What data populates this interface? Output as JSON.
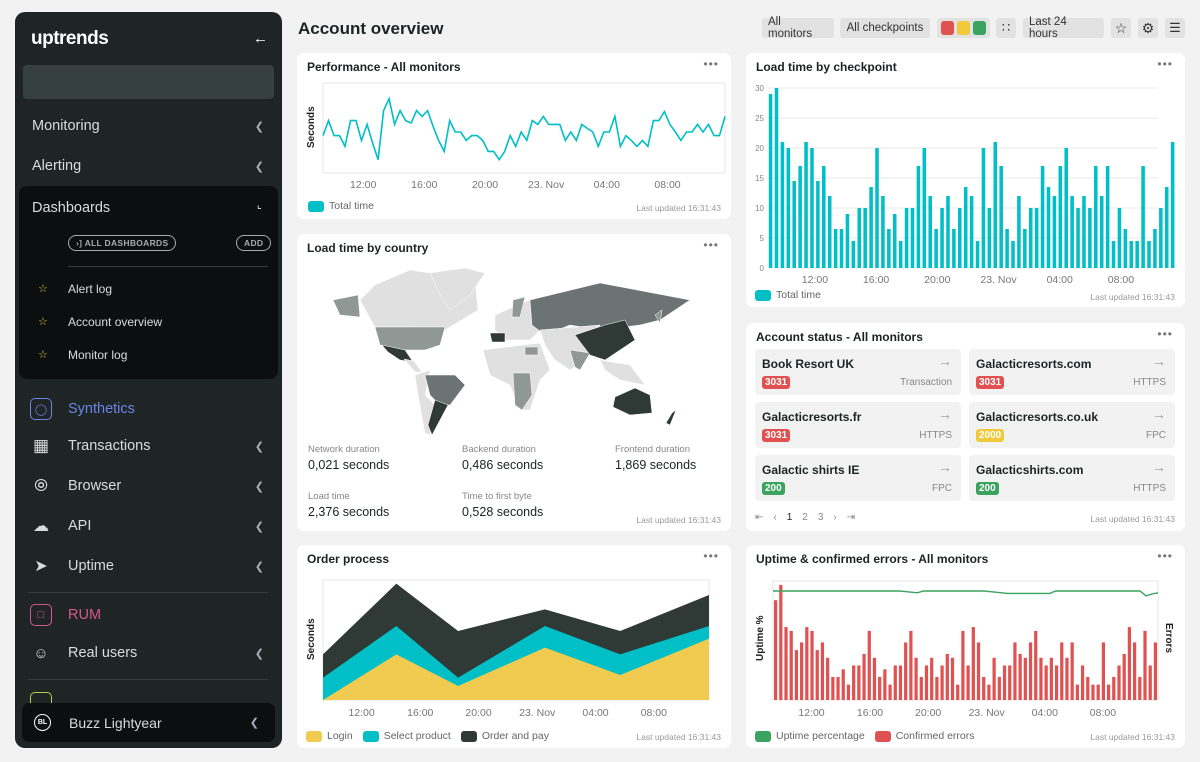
{
  "sidebar": {
    "logo": "uptrends",
    "search_placeholder": "",
    "top_items": [
      {
        "label": "Monitoring"
      },
      {
        "label": "Alerting"
      }
    ],
    "dashboards": {
      "label": "Dashboards",
      "all_label": "ALL DASHBOARDS",
      "add_label": "ADD",
      "items": [
        "Alert log",
        "Account overview",
        "Monitor log"
      ]
    },
    "synthetics": {
      "label": "Synthetics",
      "color": "#6b84e8"
    },
    "synthetic_items": [
      {
        "label": "Transactions",
        "icon": "film-icon"
      },
      {
        "label": "Browser",
        "icon": "compass-icon"
      },
      {
        "label": "API",
        "icon": "cloud-upload-icon"
      },
      {
        "label": "Uptime",
        "icon": "send-icon"
      }
    ],
    "rum": {
      "label": "RUM",
      "color": "#d6588f"
    },
    "rum_items": [
      {
        "label": "Real users",
        "icon": "users-icon"
      }
    ],
    "user": {
      "initials": "BL",
      "name": "Buzz Lightyear"
    }
  },
  "header": {
    "title": "Account overview",
    "monitors": "All monitors",
    "checkpoints": "All checkpoints",
    "status_colors": [
      "#e05252",
      "#f0c93c",
      "#3aa35f"
    ],
    "range": "Last 24 hours"
  },
  "colors": {
    "teal": "#00bfc6",
    "yellow": "#f0cb4f",
    "dark": "#2f3936",
    "red": "#e05252",
    "green": "#3aa35f"
  },
  "updated": "Last updated 16:31:43",
  "x_ticks": [
    "12:00",
    "16:00",
    "20:00",
    "23. Nov",
    "04:00",
    "08:00"
  ],
  "performance": {
    "title": "Performance - All monitors",
    "ylabel": "Seconds",
    "legend": "Total time"
  },
  "country": {
    "title": "Load time by country",
    "stats": [
      {
        "label": "Network duration",
        "value": "0,021 seconds"
      },
      {
        "label": "Backend duration",
        "value": "0,486 seconds"
      },
      {
        "label": "Frontend duration",
        "value": "1,869 seconds"
      },
      {
        "label": "Load time",
        "value": "2,376 seconds"
      },
      {
        "label": "Time to first byte",
        "value": "0,528 seconds"
      }
    ]
  },
  "checkpoint": {
    "title": "Load time by checkpoint",
    "legend": "Total time"
  },
  "status": {
    "title": "Account status - All monitors",
    "monitors": [
      {
        "name": "Book Resort UK",
        "code": "3031",
        "type": "Transaction",
        "color": "#e05252"
      },
      {
        "name": "Galacticresorts.com",
        "code": "3031",
        "type": "HTTPS",
        "color": "#e05252"
      },
      {
        "name": "Galacticresorts.fr",
        "code": "3031",
        "type": "HTTPS",
        "color": "#e05252"
      },
      {
        "name": "Galacticresorts.co.uk",
        "code": "2000",
        "type": "FPC",
        "color": "#f0c93c"
      },
      {
        "name": "Galactic shirts IE",
        "code": "200",
        "type": "FPC",
        "color": "#3aa35f"
      },
      {
        "name": "Galacticshirts.com",
        "code": "200",
        "type": "HTTPS",
        "color": "#3aa35f"
      }
    ],
    "pages": [
      "1",
      "2",
      "3"
    ],
    "current_page": "1"
  },
  "order": {
    "title": "Order process",
    "ylabel": "Seconds"
  },
  "uptime": {
    "title": "Uptime & confirmed errors - All monitors",
    "ylabel": "Uptime %",
    "y2label": "Errors"
  },
  "chart_data": [
    {
      "type": "line",
      "title": "Performance - All monitors",
      "ylabel": "Seconds",
      "x_ticks": [
        "12:00",
        "16:00",
        "20:00",
        "23. Nov",
        "04:00",
        "08:00"
      ],
      "series": [
        {
          "name": "Total time",
          "color": "#00bfc6",
          "values": [
            1.87,
            2.62,
            1.87,
            1.87,
            1.33,
            2.62,
            2.62,
            1.63,
            2.43,
            1.5,
            0.67,
            3.12,
            3.72,
            2.43,
            3.12,
            2.62,
            2.5,
            3.12,
            2.83,
            3.12,
            2.33,
            1.63,
            1.08,
            2.62,
            2.05,
            2.05,
            1.63,
            1.87,
            1.87,
            1.63,
            1.08,
            1.08,
            0.67,
            1.08,
            1.87,
            1.33,
            2.05,
            1.63,
            2.62,
            2.43,
            2.83,
            2.43,
            2.43,
            2.43,
            1.63,
            2.05,
            1.63,
            2.43,
            2.23,
            2.05,
            1.33,
            2.05,
            2.05,
            2.83,
            1.33,
            1.87,
            1.63,
            1.33,
            1.63,
            1.33,
            2.62,
            2.62,
            3.07,
            2.43,
            2.05,
            1.63,
            2.05,
            2.05,
            2.43,
            2.05,
            2.43,
            1.87,
            1.87,
            2.83
          ]
        }
      ]
    },
    {
      "type": "bar",
      "title": "Load time by checkpoint",
      "ylim": [
        0,
        30
      ],
      "y_ticks": [
        0,
        5,
        10,
        15,
        20,
        25,
        30
      ],
      "grid": true,
      "x_ticks": [
        "12:00",
        "16:00",
        "20:00",
        "23. Nov",
        "04:00",
        "08:00"
      ],
      "series": [
        {
          "name": "Total time",
          "color": "#00bfc6",
          "values": [
            29,
            30,
            21,
            20,
            14.5,
            17,
            21,
            20,
            14.5,
            17,
            12,
            6.5,
            6.5,
            9,
            4.5,
            10,
            10,
            13.5,
            20,
            12,
            6.5,
            9,
            4.5,
            10,
            10,
            17,
            20,
            12,
            6.5,
            10,
            12,
            6.5,
            10,
            13.5,
            12,
            4.5,
            20,
            10,
            21,
            17,
            6.5,
            4.5,
            12,
            6.5,
            10,
            10,
            17,
            13.5,
            12,
            17,
            20,
            12,
            10,
            12,
            10,
            17,
            12,
            17,
            4.5,
            10,
            6.5,
            4.5,
            4.5,
            17,
            4.5,
            6.5,
            10,
            13.5,
            21
          ]
        }
      ]
    },
    {
      "type": "area",
      "stacked": true,
      "title": "Order process",
      "ylabel": "Seconds",
      "x_ticks": [
        "12:00",
        "16:00",
        "20:00",
        "23. Nov",
        "04:00",
        "08:00"
      ],
      "series": [
        {
          "name": "Login",
          "color": "#f0cb4f",
          "values": [
            0,
            1.37,
            0.42,
            1.57,
            0.75,
            1.84
          ]
        },
        {
          "name": "Select product",
          "color": "#00bfc6",
          "values": [
            0.67,
            0.85,
            0.25,
            0.65,
            0.62,
            0.38
          ]
        },
        {
          "name": "Order and pay",
          "color": "#2f3936",
          "values": [
            0.7,
            1.27,
            1.4,
            0.5,
            0.7,
            0.93
          ]
        }
      ]
    },
    {
      "type": "bar+line",
      "title": "Uptime & confirmed errors - All monitors",
      "ylabel": "Uptime %",
      "y2label": "Errors",
      "x_ticks": [
        "12:00",
        "16:00",
        "20:00",
        "23. Nov",
        "04:00",
        "08:00"
      ],
      "series": [
        {
          "name": "Uptime percentage",
          "color": "#3aa35f",
          "type": "line",
          "values": [
            99.8,
            99.8,
            99.8,
            99.8,
            99.8,
            99.8,
            99.8,
            99.8,
            99.8,
            99.8,
            99.8,
            99.8,
            99.8,
            99.8,
            99.8,
            99.8,
            99.8,
            99.8,
            99.8,
            99.8,
            99.8,
            99.8,
            99.7,
            99.6,
            99.5,
            99.8,
            99.8,
            99.8,
            99.8,
            99.8,
            99.8,
            99.8,
            99.8,
            99.8,
            99.8,
            99.8,
            99.7,
            99.6,
            99.5,
            99.4,
            99.4,
            99.4,
            99.4,
            99.4,
            99.4,
            99.4,
            99.4,
            99.8,
            99.8,
            99.8,
            99.8,
            99.8,
            99.8,
            99.8,
            99.8,
            99.8,
            99.8,
            99.8,
            99.8,
            99.8,
            99.8,
            99.8,
            99.0,
            99.3,
            99.5
          ]
        },
        {
          "name": "Confirmed errors",
          "color": "#e05252",
          "type": "bar",
          "values": [
            13,
            15,
            9.5,
            9,
            6.5,
            7.5,
            9.5,
            9,
            6.5,
            7.5,
            5.5,
            3,
            3,
            4,
            2,
            4.5,
            4.5,
            6,
            9,
            5.5,
            3,
            4,
            2,
            4.5,
            4.5,
            7.5,
            9,
            5.5,
            3,
            4.5,
            5.5,
            3,
            4.5,
            6,
            5.5,
            2,
            9,
            4.5,
            9.5,
            7.5,
            3,
            2,
            5.5,
            3,
            4.5,
            4.5,
            7.5,
            6,
            5.5,
            7.5,
            9,
            5.5,
            4.5,
            5.5,
            4.5,
            7.5,
            5.5,
            7.5,
            2,
            4.5,
            3,
            2,
            2,
            7.5,
            2,
            3,
            4.5,
            6,
            9.5,
            7.5,
            3,
            9,
            4.5,
            7.5
          ]
        }
      ]
    }
  ]
}
